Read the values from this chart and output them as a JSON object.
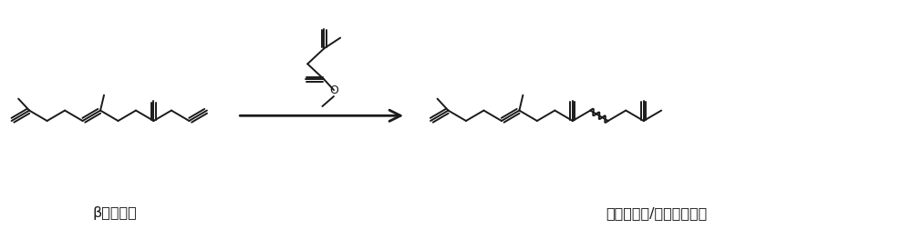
{
  "fig_width": 10.0,
  "fig_height": 2.63,
  "dpi": 100,
  "bg_color": "#ffffff",
  "line_color": "#1a1a1a",
  "line_width": 1.4,
  "arrow_color": "#1a1a1a",
  "label_left": "β－法尼烯",
  "label_right": "法尼基丙酮/异法尼基丙酮",
  "label_fontsize": 11.5,
  "xlim": [
    0,
    10
  ],
  "ylim": [
    0,
    2.63
  ]
}
